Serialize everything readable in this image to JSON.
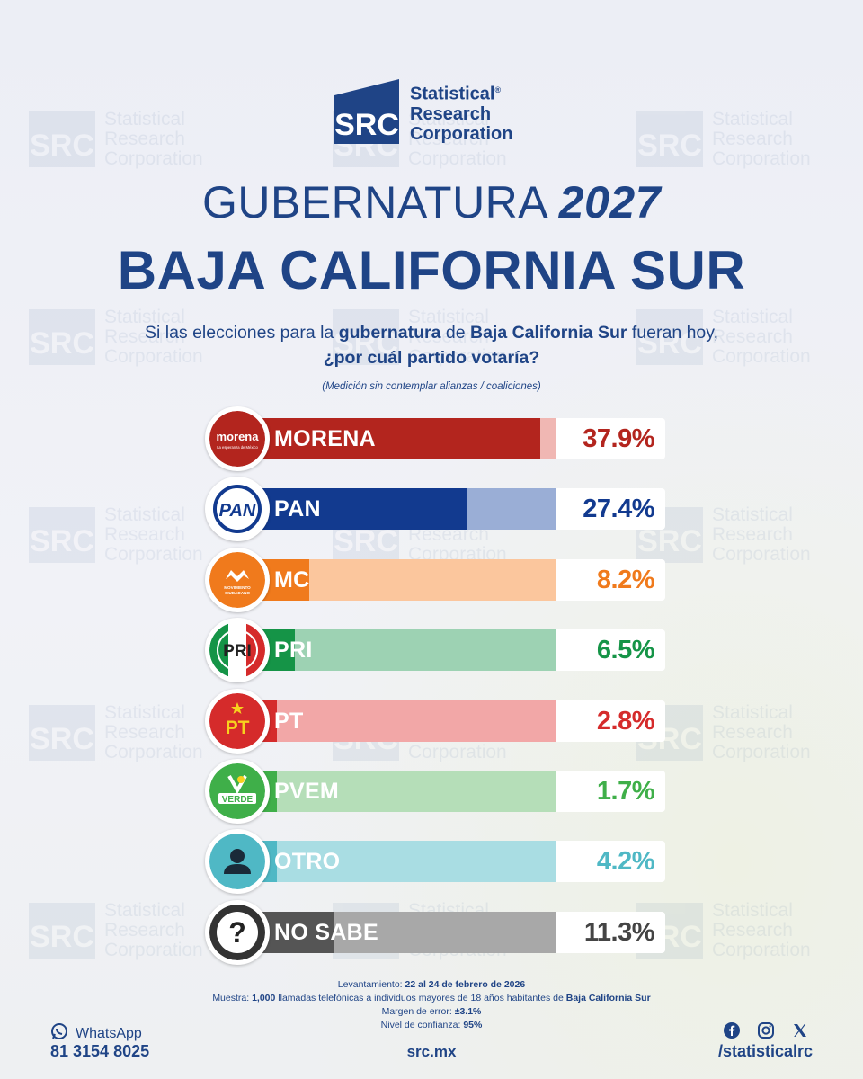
{
  "brand": {
    "mark": "SRC",
    "name_line1": "Statistical",
    "name_line2": "Research",
    "name_line3": "Corporation",
    "reg": "®"
  },
  "title": {
    "prefix": "GUBERNATURA",
    "year": "2027",
    "state": "BAJA CALIFORNIA SUR"
  },
  "question": {
    "part1": "Si las elecciones para la ",
    "bold1": "gubernatura",
    "part2": " de ",
    "bold2": "Baja California Sur",
    "part3": " fueran hoy,",
    "line2": "¿por cuál partido votaría?"
  },
  "note": "(Medición sin contemplar alianzas / coaliciones)",
  "chart_data": {
    "type": "bar",
    "orientation": "horizontal",
    "categories": [
      "MORENA",
      "PAN",
      "MC",
      "PRI",
      "PT",
      "PVEM",
      "OTRO",
      "NO SABE"
    ],
    "values": [
      37.9,
      27.4,
      8.2,
      6.5,
      2.8,
      1.7,
      4.2,
      11.3
    ],
    "value_labels": [
      "37.9%",
      "27.4%",
      "8.2%",
      "6.5%",
      "2.8%",
      "1.7%",
      "4.2%",
      "11.3%"
    ],
    "unit": "%",
    "colors": [
      "#b3251e",
      "#123a8f",
      "#f07a1c",
      "#159447",
      "#d52b2b",
      "#3faf49",
      "#4fb8c5",
      "#555555"
    ],
    "track_colors": [
      "#f0b7b3",
      "#9aaed6",
      "#fbc69d",
      "#9dd2b3",
      "#f2a7a7",
      "#b5deb8",
      "#a9dde3",
      "#a8a8a8"
    ],
    "text_colors": [
      "#b3251e",
      "#123a8f",
      "#f07a1c",
      "#159447",
      "#d52b2b",
      "#3faf49",
      "#4fb8c5",
      "#444444"
    ],
    "xlim": [
      0,
      38
    ],
    "badges": [
      {
        "icon": "morena-logo-icon",
        "text": "morena",
        "sub": "La esperanza de México"
      },
      {
        "icon": "pan-logo-icon",
        "text": "PAN"
      },
      {
        "icon": "mc-logo-icon",
        "text": "MOVIMIENTO CIUDADANO"
      },
      {
        "icon": "pri-logo-icon",
        "text": "PRI"
      },
      {
        "icon": "pt-logo-icon",
        "text": "PT"
      },
      {
        "icon": "verde-logo-icon",
        "text": "VERDE"
      },
      {
        "icon": "person-icon",
        "text": ""
      },
      {
        "icon": "question-icon",
        "text": "?"
      }
    ]
  },
  "footnote": {
    "fieldwork_label": "Levantamiento: ",
    "fieldwork_value": "22 al 24 de febrero de 2026",
    "sample_label": "Muestra: ",
    "sample_value": "1,000",
    "sample_text": " llamadas telefónicas a individuos mayores de 18 años habitantes de ",
    "sample_state": "Baja California Sur",
    "error_label": "Margen de error: ",
    "error_value": "±3.1%",
    "confidence_label": "Nivel de confianza: ",
    "confidence_value": "95%"
  },
  "contact": {
    "whatsapp_label": "WhatsApp",
    "whatsapp_number": "81 3154 8025",
    "website": "src.mx",
    "handle": "/statisticalrc"
  },
  "icons": [
    "whatsapp-icon",
    "facebook-icon",
    "instagram-icon",
    "x-icon"
  ],
  "accent": "#1f4486"
}
